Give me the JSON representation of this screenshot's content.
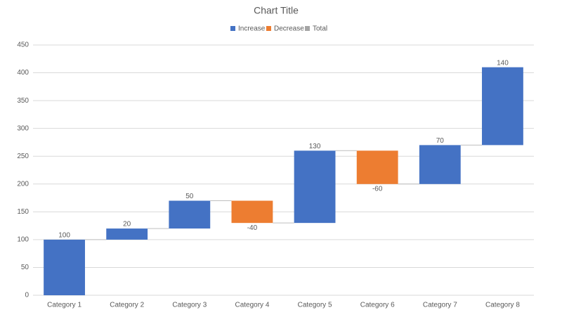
{
  "chart_data": {
    "type": "waterfall",
    "title": "Chart Title",
    "categories": [
      "Category 1",
      "Category 2",
      "Category 3",
      "Category 4",
      "Category 5",
      "Category 6",
      "Category 7",
      "Category 8"
    ],
    "values": [
      100,
      20,
      50,
      -40,
      130,
      -60,
      70,
      140
    ],
    "legend": [
      {
        "name": "Increase",
        "color": "#4472c4"
      },
      {
        "name": "Decrease",
        "color": "#ed7d31"
      },
      {
        "name": "Total",
        "color": "#a5a5a5"
      }
    ],
    "ylim": [
      0,
      450
    ],
    "yticks": [
      0,
      50,
      100,
      150,
      200,
      250,
      300,
      350,
      400,
      450
    ],
    "grid": true
  }
}
